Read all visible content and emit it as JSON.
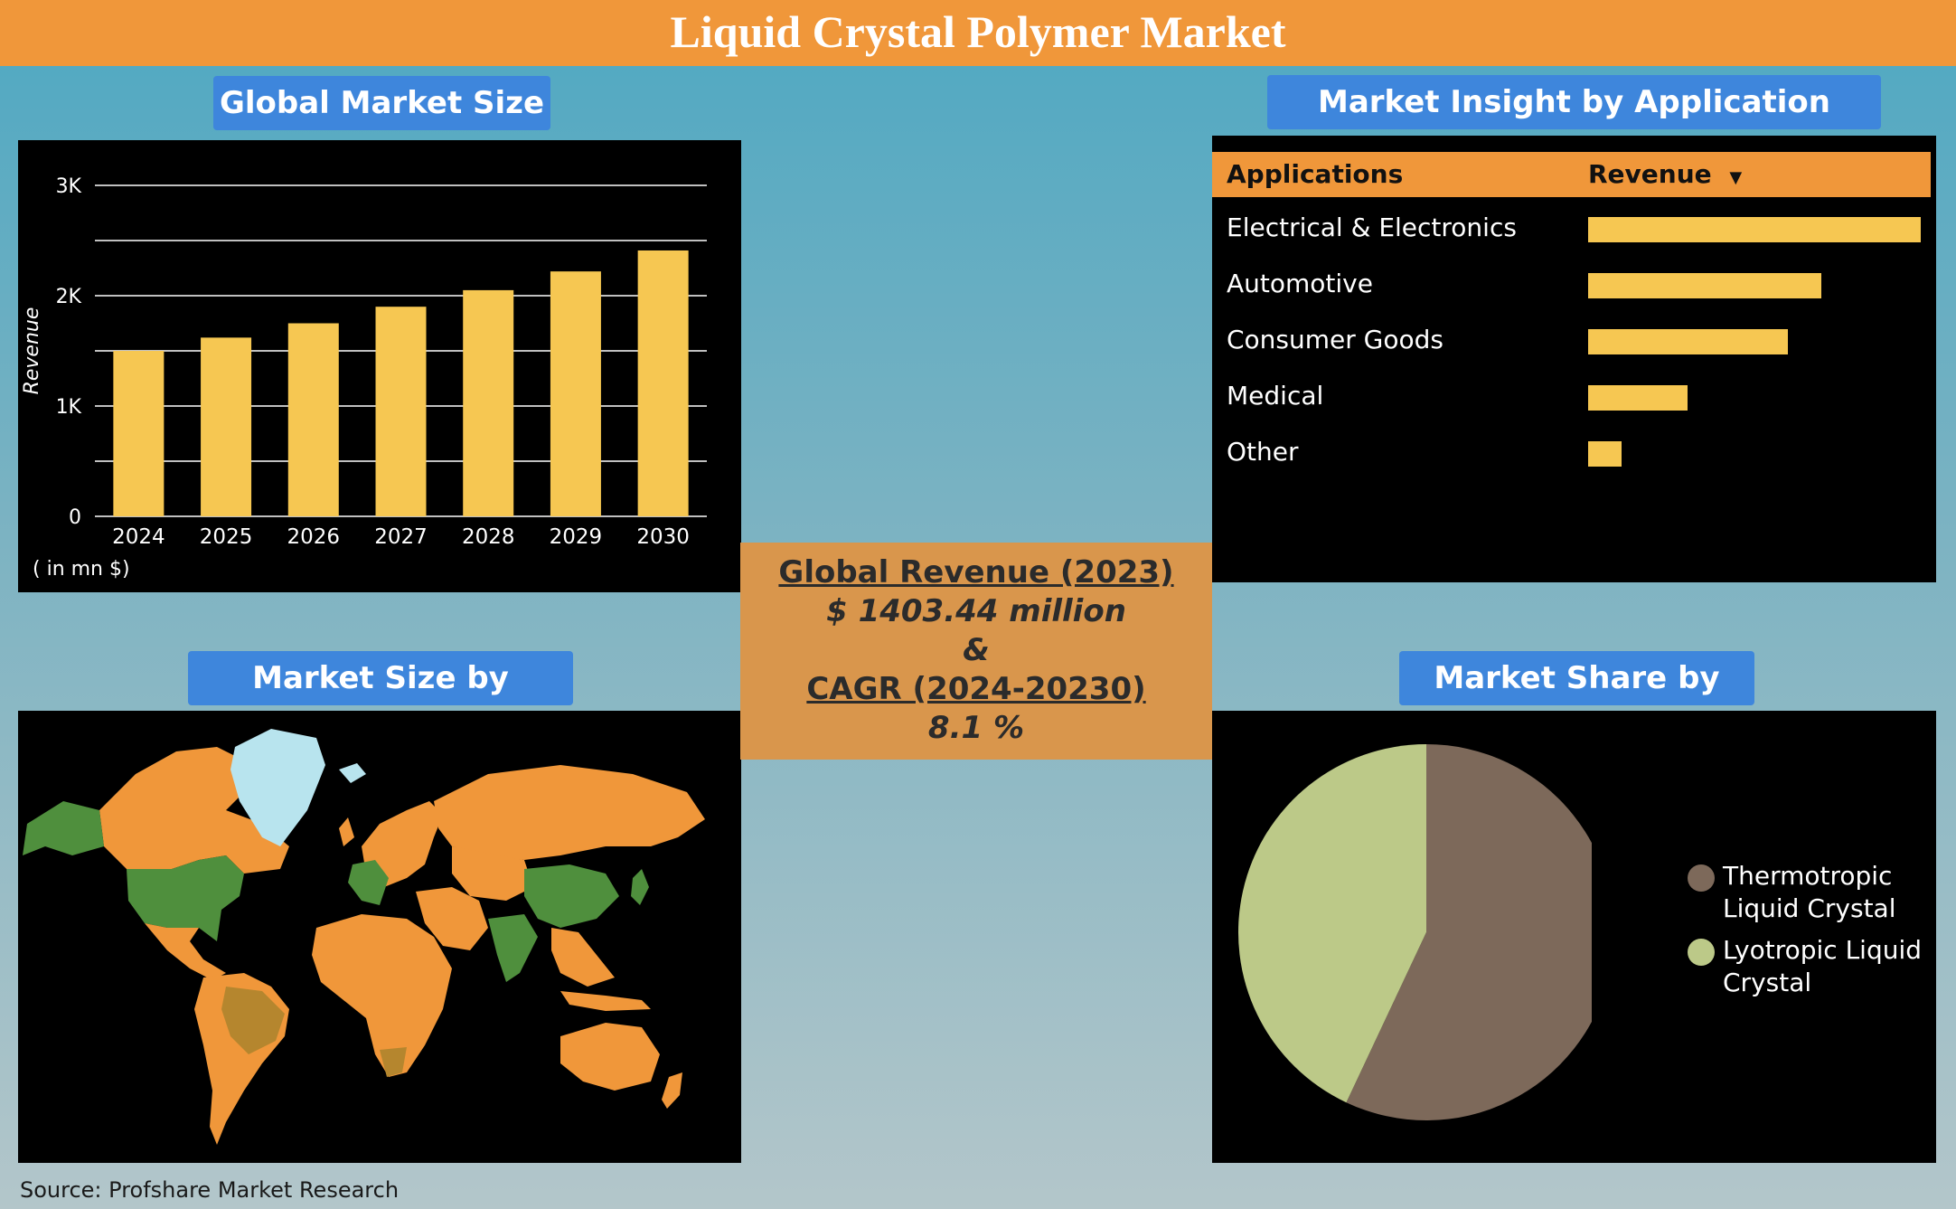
{
  "title": "Liquid Crystal Polymer Market",
  "source": "Source: Profshare Market Research",
  "sections": {
    "global": "Global Market Size",
    "region": "Market Size by Region",
    "application": "Market Insight by Application",
    "type": "Market Share by Type"
  },
  "center": {
    "revenue_label": "Global Revenue (2023)",
    "revenue_value": "$ 1403.44 million",
    "amp": "&",
    "cagr_label": "CAGR (2024-20230)",
    "cagr_value": "8.1 %"
  },
  "colors": {
    "header": "#f0973a",
    "section_title": "#3e86dc",
    "bar": "#f6c752",
    "map_orange": "#f0973a",
    "map_green": "#4f8f3d",
    "map_ice": "#b8e4ee"
  },
  "chart_data": [
    {
      "type": "bar",
      "categories": [
        "2024",
        "2025",
        "2026",
        "2027",
        "2028",
        "2029",
        "2030"
      ],
      "values": [
        1500,
        1620,
        1750,
        1900,
        2050,
        2220,
        2410
      ],
      "ylabel": "Revenue",
      "unit_note": "( in mn $)",
      "yticks": [
        "0",
        "1K",
        "2K",
        "3K"
      ],
      "ylim": [
        0,
        3000
      ],
      "grid": true
    },
    {
      "type": "bar",
      "orientation": "horizontal",
      "columns": [
        "Applications",
        "Revenue"
      ],
      "categories": [
        "Electrical & Electronics",
        "Automotive",
        "Consumer Goods",
        "Medical",
        "Other"
      ],
      "values": [
        100,
        70,
        60,
        30,
        10
      ]
    },
    {
      "type": "pie",
      "labels": [
        "Thermotropic Liquid Crystal",
        "Lyotropic Liquid Crystal"
      ],
      "legend_lines": [
        [
          "Thermotropic",
          "Liquid Crystal"
        ],
        [
          "Lyotropic Liquid",
          "Crystal"
        ]
      ],
      "values": [
        57,
        43
      ],
      "colors": [
        "#7d695a",
        "#bcc988"
      ],
      "legend": "right"
    }
  ]
}
